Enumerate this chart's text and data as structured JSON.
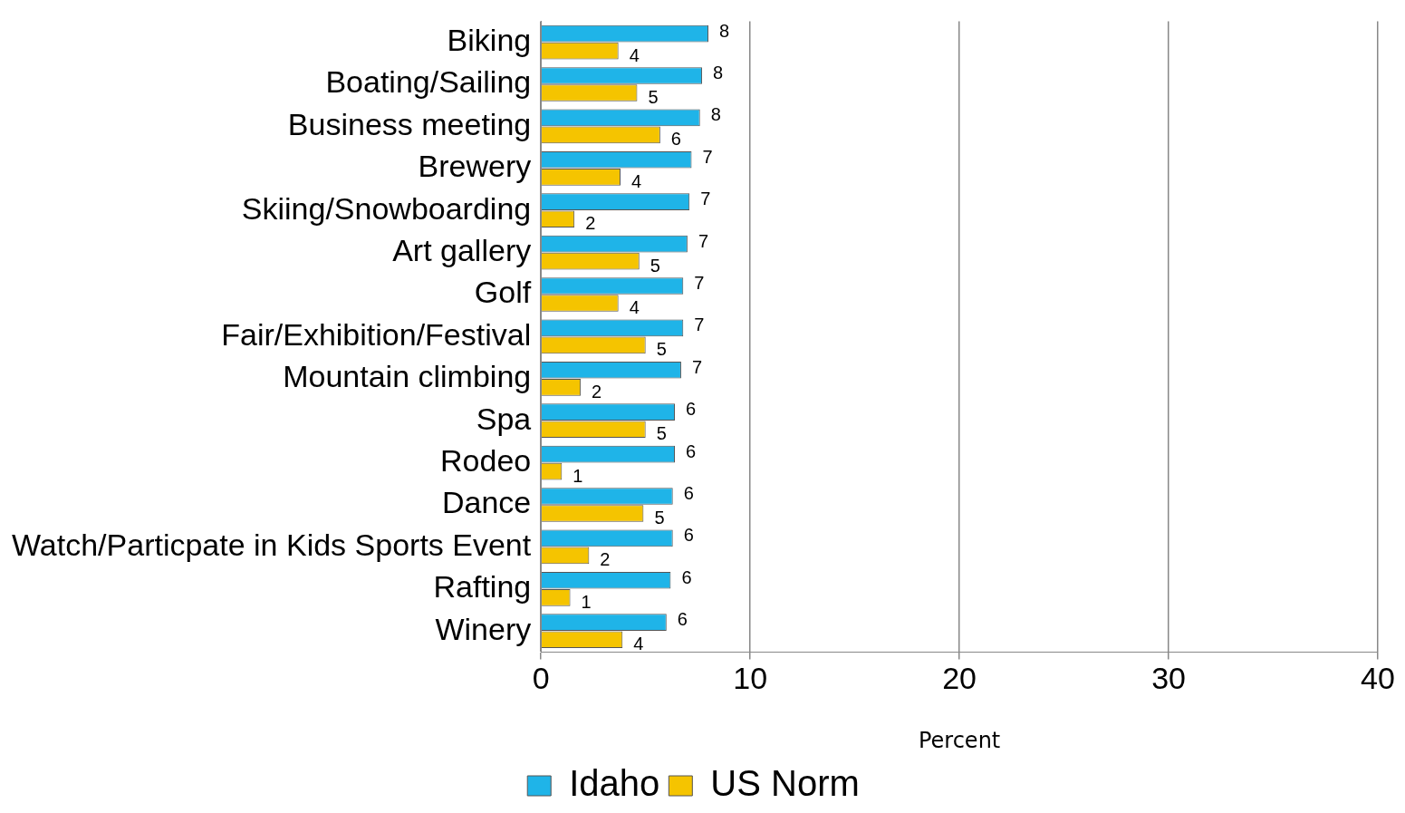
{
  "chart_data": {
    "type": "bar",
    "orientation": "horizontal",
    "xlabel": "Percent",
    "categories": [
      "Biking",
      "Boating/Sailing",
      "Business meeting",
      "Brewery",
      "Skiing/Snowboarding",
      "Art gallery",
      "Golf",
      "Fair/Exhibition/Festival",
      "Mountain climbing",
      "Spa",
      "Rodeo",
      "Dance",
      "Watch/Particpate in Kids Sports Event",
      "Rafting",
      "Winery"
    ],
    "series": [
      {
        "name": "Idaho",
        "color": "#1fb4e8",
        "values": [
          8.0,
          7.7,
          7.6,
          7.2,
          7.1,
          7.0,
          6.8,
          6.8,
          6.7,
          6.4,
          6.4,
          6.3,
          6.3,
          6.2,
          6.0
        ],
        "value_labels": [
          "8",
          "8",
          "8",
          "7",
          "7",
          "7",
          "7",
          "7",
          "7",
          "6",
          "6",
          "6",
          "6",
          "6",
          "6"
        ]
      },
      {
        "name": "US Norm",
        "color": "#f5c400",
        "values": [
          3.7,
          4.6,
          5.7,
          3.8,
          1.6,
          4.7,
          3.7,
          5.0,
          1.9,
          5.0,
          1.0,
          4.9,
          2.3,
          1.4,
          3.9
        ],
        "value_labels": [
          "4",
          "5",
          "6",
          "4",
          "2",
          "5",
          "4",
          "5",
          "2",
          "5",
          "1",
          "5",
          "2",
          "1",
          "4"
        ]
      }
    ],
    "xlim": [
      0,
      40
    ],
    "xticks": [
      0,
      10,
      20,
      30,
      40
    ],
    "grid": "x",
    "legend": "bottom"
  }
}
